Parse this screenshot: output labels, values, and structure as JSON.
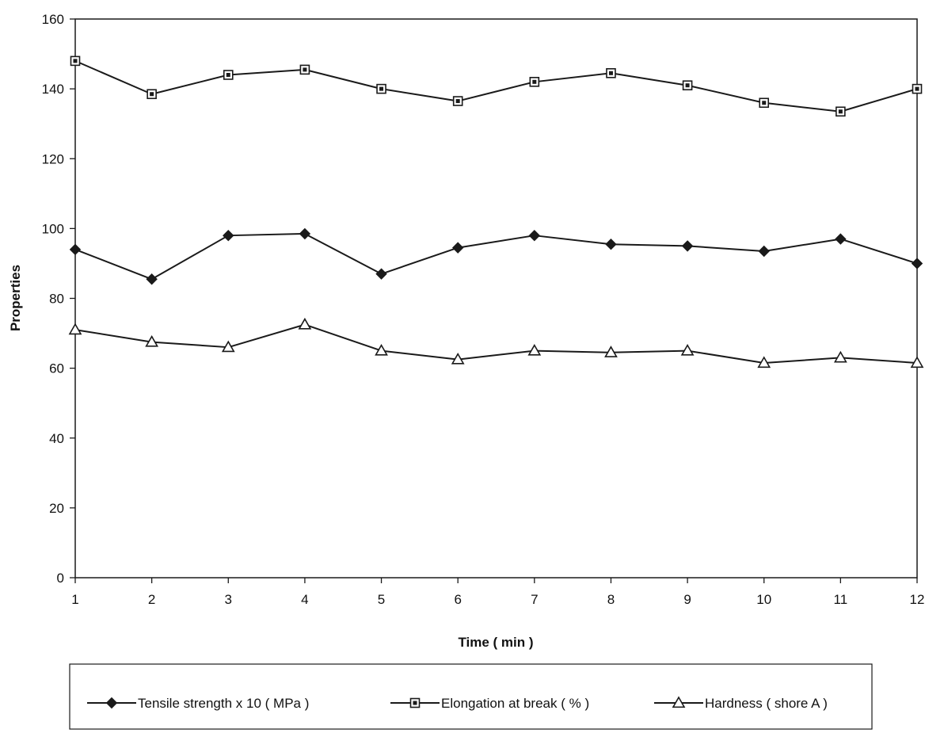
{
  "chart_data": {
    "type": "line",
    "xlabel": "Time ( min )",
    "ylabel": "Properties",
    "x": [
      1,
      2,
      3,
      4,
      5,
      6,
      7,
      8,
      9,
      10,
      11,
      12
    ],
    "xlim": [
      1,
      12
    ],
    "ylim": [
      0,
      160
    ],
    "yticks": [
      0,
      20,
      40,
      60,
      80,
      100,
      120,
      140,
      160
    ],
    "grid": false,
    "legend_position": "bottom",
    "series": [
      {
        "name": "Tensile strength x 10 ( MPa )",
        "marker": "diamond",
        "color": "#1a1a1a",
        "values": [
          94,
          85.5,
          98,
          98.5,
          87,
          94.5,
          98,
          95.5,
          95,
          93.5,
          97,
          90
        ]
      },
      {
        "name": "Elongation at break ( % )",
        "marker": "square",
        "color": "#1a1a1a",
        "values": [
          148,
          138.5,
          144,
          145.5,
          140,
          136.5,
          142,
          144.5,
          141,
          136,
          133.5,
          140
        ]
      },
      {
        "name": "Hardness ( shore A )",
        "marker": "triangle",
        "color": "#1a1a1a",
        "values": [
          71,
          67.5,
          66,
          72.5,
          65,
          62.5,
          65,
          64.5,
          65,
          61.5,
          63,
          61.5
        ]
      }
    ]
  }
}
